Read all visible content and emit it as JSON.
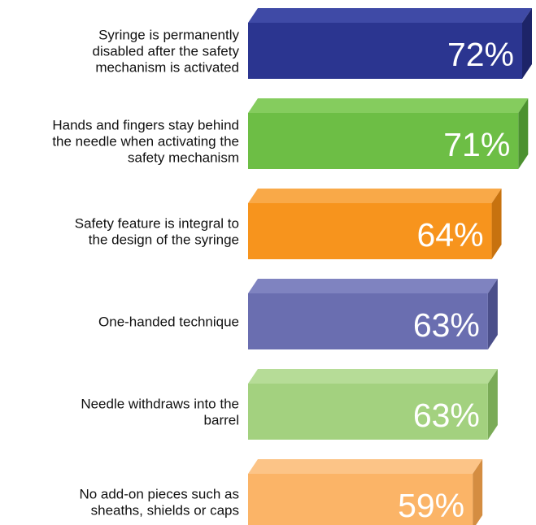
{
  "chart_data": {
    "type": "bar",
    "orientation": "horizontal",
    "style": "3d",
    "categories": [
      "Syringe is permanently disabled after the safety mechanism is activated",
      "Hands and fingers stay behind the needle when activating the safety mechanism",
      "Safety feature is integral to the design of the syringe",
      "One-handed technique",
      "Needle withdraws into the barrel",
      "No add-on pieces such as sheaths, shields or caps"
    ],
    "category_lines": [
      [
        "Syringe is permanently",
        "disabled after the safety",
        "mechanism is activated"
      ],
      [
        "Hands and fingers stay behind",
        "the needle when activating the",
        "safety mechanism"
      ],
      [
        "Safety feature is integral to",
        "the design of the syringe"
      ],
      [
        "One-handed technique"
      ],
      [
        "Needle withdraws into the",
        "barrel"
      ],
      [
        "No add-on pieces such as",
        "sheaths, shields or caps"
      ]
    ],
    "values": [
      72,
      71,
      64,
      63,
      63,
      59
    ],
    "value_labels": [
      "72%",
      "71%",
      "64%",
      "63%",
      "63%",
      "59%"
    ],
    "colors": [
      {
        "front": "#2b3590",
        "top": "#3f4aa6",
        "side": "#1d2468"
      },
      {
        "front": "#6dbe45",
        "top": "#85cc5e",
        "side": "#4c9130"
      },
      {
        "front": "#f7941d",
        "top": "#f9a948",
        "side": "#c7720f"
      },
      {
        "front": "#6a6eb0",
        "top": "#7f83c0",
        "side": "#4b4f8a"
      },
      {
        "front": "#a3d17f",
        "top": "#b6dc97",
        "side": "#7aab57"
      },
      {
        "front": "#fbb467",
        "top": "#fcc487",
        "side": "#d48d41"
      }
    ],
    "xlim": [
      0,
      72
    ],
    "title": "",
    "xlabel": "",
    "ylabel": "",
    "grid": false,
    "legend": "none"
  }
}
